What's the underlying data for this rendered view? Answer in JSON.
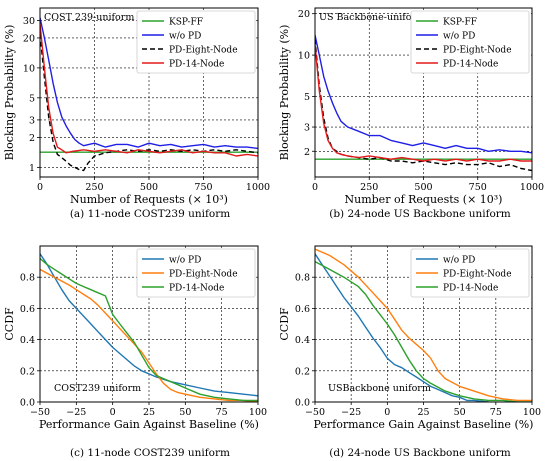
{
  "chart_data": [
    {
      "type": "line",
      "caption": "(a) 11-node COST239 uniform",
      "annotation": "COST 239-uniform",
      "xlabel": "Number of Requests (× 10³)",
      "ylabel": "Blocking Probability (%)",
      "xlim": [
        0,
        1000
      ],
      "ylim": [
        0.8,
        40
      ],
      "yscale": "log",
      "xticks": [
        0,
        250,
        500,
        750,
        1000
      ],
      "xtick_labels": [
        "0",
        "250",
        "500",
        "750",
        "1000"
      ],
      "yticks": [
        1,
        2,
        3,
        5,
        10,
        20,
        30
      ],
      "ytick_labels": [
        "1",
        "2",
        "3",
        "5",
        "10",
        "20",
        "30"
      ],
      "grid": true,
      "legend": "top-right",
      "series": [
        {
          "name": "KSP-FF",
          "color": "#2ca02c",
          "dash": "solid",
          "x": [
            0,
            1000
          ],
          "y": [
            1.42,
            1.42
          ]
        },
        {
          "name": "w/o PD",
          "color": "#1f1fe6",
          "dash": "solid",
          "x": [
            0,
            20,
            40,
            60,
            80,
            100,
            120,
            140,
            160,
            180,
            200,
            250,
            300,
            350,
            400,
            450,
            500,
            550,
            600,
            650,
            700,
            750,
            800,
            850,
            900,
            950,
            1000
          ],
          "y": [
            32,
            20,
            12,
            7,
            4.5,
            3.2,
            2.6,
            2.2,
            1.9,
            1.75,
            1.65,
            1.75,
            1.6,
            1.7,
            1.7,
            1.6,
            1.75,
            1.65,
            1.7,
            1.6,
            1.65,
            1.7,
            1.6,
            1.65,
            1.6,
            1.6,
            1.55
          ]
        },
        {
          "name": "PD-Eight-Node",
          "color": "#000000",
          "dash": "5,3",
          "x": [
            0,
            20,
            40,
            60,
            80,
            100,
            120,
            140,
            160,
            180,
            200,
            220,
            250,
            300,
            350,
            400,
            450,
            500,
            550,
            600,
            650,
            700,
            750,
            800,
            850,
            900,
            950,
            1000
          ],
          "y": [
            22,
            8,
            3.2,
            1.8,
            1.35,
            1.25,
            1.15,
            1.05,
            1.0,
            0.95,
            0.93,
            1.1,
            1.3,
            1.4,
            1.45,
            1.5,
            1.45,
            1.5,
            1.45,
            1.5,
            1.45,
            1.5,
            1.45,
            1.5,
            1.45,
            1.5,
            1.45,
            1.4
          ]
        },
        {
          "name": "PD-14-Node",
          "color": "#e31a1c",
          "dash": "solid",
          "x": [
            0,
            20,
            40,
            60,
            80,
            100,
            120,
            150,
            200,
            250,
            300,
            350,
            400,
            450,
            500,
            550,
            600,
            650,
            700,
            750,
            800,
            850,
            900,
            950,
            1000
          ],
          "y": [
            28,
            10,
            4,
            2.2,
            1.6,
            1.5,
            1.4,
            1.45,
            1.5,
            1.45,
            1.5,
            1.45,
            1.4,
            1.5,
            1.45,
            1.4,
            1.45,
            1.5,
            1.4,
            1.45,
            1.4,
            1.4,
            1.3,
            1.35,
            1.3
          ]
        }
      ]
    },
    {
      "type": "line",
      "caption": "(b) 24-node US Backbone uniform",
      "annotation": "US Backbone-uniform",
      "xlabel": "Number of Requests (× 10³)",
      "ylabel": "Blocking Probability (%)",
      "xlim": [
        0,
        1000
      ],
      "ylim": [
        1.3,
        22
      ],
      "yscale": "log",
      "xticks": [
        0,
        250,
        500,
        750,
        1000
      ],
      "xtick_labels": [
        "0",
        "250",
        "500",
        "750",
        "1000"
      ],
      "yticks": [
        2,
        3,
        5,
        10,
        20
      ],
      "ytick_labels": [
        "2",
        "3",
        "5",
        "10",
        "20"
      ],
      "grid": true,
      "legend": "top-right",
      "series": [
        {
          "name": "KSP-FF",
          "color": "#2ca02c",
          "dash": "solid",
          "x": [
            0,
            1000
          ],
          "y": [
            1.75,
            1.75
          ]
        },
        {
          "name": "w/o PD",
          "color": "#1f1fe6",
          "dash": "solid",
          "x": [
            0,
            20,
            40,
            60,
            80,
            100,
            120,
            150,
            200,
            250,
            300,
            350,
            400,
            450,
            500,
            550,
            600,
            650,
            700,
            750,
            800,
            850,
            900,
            950,
            1000
          ],
          "y": [
            14,
            10,
            7,
            5.5,
            4.5,
            3.8,
            3.3,
            3.0,
            2.8,
            2.6,
            2.6,
            2.4,
            2.3,
            2.2,
            2.3,
            2.2,
            2.1,
            2.2,
            2.1,
            2.1,
            2.0,
            2.05,
            2.0,
            2.0,
            1.95
          ]
        },
        {
          "name": "PD-Eight-Node",
          "color": "#000000",
          "dash": "5,3",
          "x": [
            0,
            20,
            40,
            60,
            80,
            100,
            120,
            150,
            200,
            250,
            300,
            350,
            400,
            450,
            500,
            550,
            600,
            650,
            700,
            750,
            800,
            850,
            900,
            950,
            1000
          ],
          "y": [
            13,
            6,
            3.5,
            2.5,
            2.1,
            2.0,
            1.9,
            1.85,
            1.8,
            1.75,
            1.8,
            1.7,
            1.7,
            1.65,
            1.7,
            1.65,
            1.6,
            1.65,
            1.6,
            1.6,
            1.65,
            1.55,
            1.6,
            1.5,
            1.45
          ]
        },
        {
          "name": "PD-14-Node",
          "color": "#e31a1c",
          "dash": "solid",
          "x": [
            0,
            20,
            40,
            60,
            80,
            100,
            120,
            150,
            200,
            250,
            300,
            350,
            400,
            450,
            500,
            550,
            600,
            650,
            700,
            750,
            800,
            850,
            900,
            950,
            1000
          ],
          "y": [
            12,
            5.5,
            3.2,
            2.4,
            2.1,
            1.95,
            1.9,
            1.85,
            1.8,
            1.85,
            1.8,
            1.75,
            1.8,
            1.75,
            1.7,
            1.75,
            1.7,
            1.75,
            1.7,
            1.75,
            1.7,
            1.7,
            1.75,
            1.7,
            1.7
          ]
        }
      ]
    },
    {
      "type": "line",
      "caption": "(c) 11-node COST239 uniform",
      "annotation": "COST239 uniform",
      "xlabel": "Performance Gain Against Baseline (%)",
      "ylabel": "CCDF",
      "xlim": [
        -50,
        100
      ],
      "ylim": [
        0,
        1
      ],
      "yscale": "linear",
      "xticks": [
        -50,
        -25,
        0,
        25,
        50,
        75,
        100
      ],
      "xtick_labels": [
        "−50",
        "−25",
        "0",
        "25",
        "50",
        "75",
        "100"
      ],
      "yticks": [
        0,
        0.2,
        0.4,
        0.6,
        0.8
      ],
      "ytick_labels": [
        "0.0",
        "0.2",
        "0.4",
        "0.6",
        "0.8"
      ],
      "grid": true,
      "legend": "top-right",
      "series": [
        {
          "name": "w/o PD",
          "color": "#1f77b4",
          "dash": "solid",
          "x": [
            -50,
            -45,
            -40,
            -35,
            -30,
            -25,
            -20,
            -15,
            -10,
            -5,
            0,
            5,
            10,
            15,
            20,
            25,
            30,
            40,
            50,
            60,
            70,
            80,
            90,
            100
          ],
          "y": [
            0.95,
            0.88,
            0.8,
            0.72,
            0.65,
            0.6,
            0.55,
            0.5,
            0.45,
            0.4,
            0.35,
            0.31,
            0.27,
            0.23,
            0.2,
            0.18,
            0.16,
            0.13,
            0.11,
            0.09,
            0.07,
            0.06,
            0.05,
            0.04
          ]
        },
        {
          "name": "PD-Eight-Node",
          "color": "#ff7f0e",
          "dash": "solid",
          "x": [
            -50,
            -40,
            -30,
            -25,
            -20,
            -15,
            -10,
            -5,
            0,
            5,
            10,
            15,
            20,
            25,
            30,
            35,
            40,
            45,
            50,
            60,
            70,
            80,
            90,
            100
          ],
          "y": [
            0.85,
            0.8,
            0.75,
            0.72,
            0.69,
            0.66,
            0.62,
            0.57,
            0.52,
            0.47,
            0.42,
            0.37,
            0.32,
            0.25,
            0.18,
            0.12,
            0.08,
            0.06,
            0.05,
            0.03,
            0.02,
            0.01,
            0.01,
            0.0
          ]
        },
        {
          "name": "PD-14-Node",
          "color": "#2ca02c",
          "dash": "solid",
          "x": [
            -50,
            -45,
            -40,
            -35,
            -30,
            -25,
            -20,
            -15,
            -10,
            -5,
            0,
            5,
            10,
            15,
            20,
            25,
            30,
            35,
            40,
            45,
            50,
            60,
            70,
            80,
            90,
            100
          ],
          "y": [
            0.92,
            0.88,
            0.85,
            0.82,
            0.79,
            0.76,
            0.74,
            0.72,
            0.7,
            0.68,
            0.56,
            0.5,
            0.44,
            0.38,
            0.3,
            0.22,
            0.17,
            0.15,
            0.13,
            0.11,
            0.09,
            0.05,
            0.03,
            0.02,
            0.01,
            0.01
          ]
        }
      ]
    },
    {
      "type": "line",
      "caption": "(d) 24-node US Backbone uniform",
      "annotation": "USBackbone uniform",
      "xlabel": "Performance Gain Against Baseline (%)",
      "ylabel": "CCDF",
      "xlim": [
        -50,
        100
      ],
      "ylim": [
        0,
        1
      ],
      "yscale": "linear",
      "xticks": [
        -50,
        -25,
        0,
        25,
        50,
        75,
        100
      ],
      "xtick_labels": [
        "−50",
        "−25",
        "0",
        "25",
        "50",
        "75",
        "100"
      ],
      "yticks": [
        0,
        0.2,
        0.4,
        0.6,
        0.8
      ],
      "ytick_labels": [
        "0.0",
        "0.2",
        "0.4",
        "0.6",
        "0.8"
      ],
      "grid": true,
      "legend": "top-right",
      "series": [
        {
          "name": "w/o PD",
          "color": "#1f77b4",
          "dash": "solid",
          "x": [
            -50,
            -45,
            -40,
            -35,
            -30,
            -25,
            -20,
            -15,
            -10,
            -5,
            0,
            5,
            10,
            15,
            20,
            25,
            30,
            35,
            40,
            45,
            50,
            55,
            60,
            70
          ],
          "y": [
            0.95,
            0.88,
            0.81,
            0.74,
            0.67,
            0.61,
            0.55,
            0.48,
            0.41,
            0.35,
            0.28,
            0.24,
            0.22,
            0.19,
            0.16,
            0.13,
            0.1,
            0.08,
            0.06,
            0.04,
            0.03,
            0.01,
            0.01,
            0.0
          ]
        },
        {
          "name": "PD-Eight-Node",
          "color": "#ff7f0e",
          "dash": "solid",
          "x": [
            -50,
            -40,
            -30,
            -20,
            -10,
            0,
            5,
            10,
            15,
            20,
            25,
            30,
            35,
            40,
            50,
            60,
            70,
            80,
            90,
            100
          ],
          "y": [
            0.98,
            0.94,
            0.88,
            0.8,
            0.7,
            0.6,
            0.53,
            0.46,
            0.41,
            0.37,
            0.33,
            0.28,
            0.2,
            0.15,
            0.1,
            0.07,
            0.04,
            0.02,
            0.01,
            0.01
          ]
        },
        {
          "name": "PD-14-Node",
          "color": "#2ca02c",
          "dash": "solid",
          "x": [
            -50,
            -40,
            -30,
            -20,
            -15,
            -10,
            -5,
            0,
            5,
            10,
            15,
            20,
            25,
            30,
            40,
            50,
            60,
            70,
            80,
            90,
            100
          ],
          "y": [
            0.9,
            0.85,
            0.8,
            0.74,
            0.69,
            0.62,
            0.56,
            0.5,
            0.43,
            0.35,
            0.27,
            0.2,
            0.15,
            0.12,
            0.07,
            0.04,
            0.02,
            0.01,
            0.01,
            0.0,
            0.0
          ]
        }
      ]
    }
  ]
}
